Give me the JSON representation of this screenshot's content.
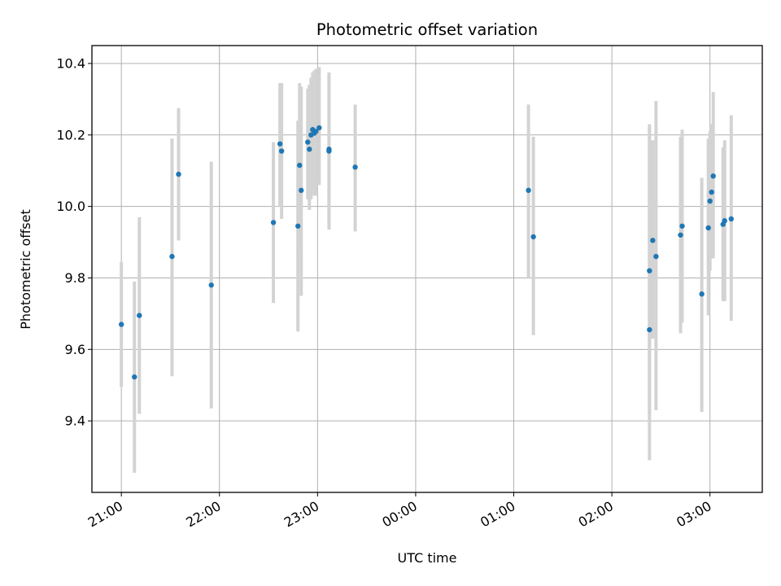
{
  "chart_data": {
    "type": "scatter",
    "title": "Photometric offset variation",
    "xlabel": "UTC time",
    "ylabel": "Photometric offset",
    "x_is_time": true,
    "xlim": [
      "20:42",
      "03:32"
    ],
    "ylim": [
      9.2,
      10.45
    ],
    "grid": true,
    "x_ticks": [
      "21:00",
      "22:00",
      "23:00",
      "00:00",
      "01:00",
      "02:00",
      "03:00"
    ],
    "y_ticks": [
      9.4,
      9.6,
      9.8,
      10.0,
      10.2,
      10.4
    ],
    "y_tick_labels": [
      "9.4",
      "9.6",
      "9.8",
      "10.0",
      "10.2",
      "10.4"
    ],
    "colors": {
      "point": "#1f77b4",
      "errorbar": "#d3d3d3",
      "grid": "#b0b0b0"
    },
    "points": [
      {
        "t": "21:00",
        "y": 9.67,
        "lo": 9.495,
        "hi": 9.845
      },
      {
        "t": "21:08",
        "y": 9.523,
        "lo": 9.255,
        "hi": 9.79
      },
      {
        "t": "21:11",
        "y": 9.695,
        "lo": 9.42,
        "hi": 9.97
      },
      {
        "t": "21:31",
        "y": 9.86,
        "lo": 9.525,
        "hi": 10.19
      },
      {
        "t": "21:35",
        "y": 10.09,
        "lo": 9.905,
        "hi": 10.275
      },
      {
        "t": "21:55",
        "y": 9.78,
        "lo": 9.435,
        "hi": 10.125
      },
      {
        "t": "22:33",
        "y": 9.955,
        "lo": 9.73,
        "hi": 10.18
      },
      {
        "t": "22:37",
        "y": 10.175,
        "lo": 10.0,
        "hi": 10.345
      },
      {
        "t": "22:38",
        "y": 10.155,
        "lo": 9.965,
        "hi": 10.345
      },
      {
        "t": "22:48",
        "y": 9.945,
        "lo": 9.65,
        "hi": 10.24
      },
      {
        "t": "22:49",
        "y": 10.115,
        "lo": 9.88,
        "hi": 10.345
      },
      {
        "t": "22:50",
        "y": 10.045,
        "lo": 9.75,
        "hi": 10.335
      },
      {
        "t": "22:54",
        "y": 10.18,
        "lo": 10.02,
        "hi": 10.33
      },
      {
        "t": "22:55",
        "y": 10.16,
        "lo": 9.99,
        "hi": 10.34
      },
      {
        "t": "22:56",
        "y": 10.2,
        "lo": 10.02,
        "hi": 10.36
      },
      {
        "t": "22:57",
        "y": 10.215,
        "lo": 10.05,
        "hi": 10.375
      },
      {
        "t": "22:58",
        "y": 10.205,
        "lo": 10.03,
        "hi": 10.38
      },
      {
        "t": "22:59",
        "y": 10.21,
        "lo": 10.03,
        "hi": 10.385
      },
      {
        "t": "23:01",
        "y": 10.22,
        "lo": 10.06,
        "hi": 10.39
      },
      {
        "t": "23:07",
        "y": 10.155,
        "lo": 9.935,
        "hi": 10.37
      },
      {
        "t": "23:07",
        "y": 10.16,
        "lo": 9.95,
        "hi": 10.375
      },
      {
        "t": "23:23",
        "y": 10.11,
        "lo": 9.93,
        "hi": 10.285
      },
      {
        "t": "01:09",
        "y": 10.045,
        "lo": 9.8,
        "hi": 10.285
      },
      {
        "t": "01:12",
        "y": 9.915,
        "lo": 9.64,
        "hi": 10.195
      },
      {
        "t": "02:23",
        "y": 9.655,
        "lo": 9.29,
        "hi": 10.23
      },
      {
        "t": "02:23",
        "y": 9.82,
        "lo": 9.42,
        "hi": 10.22
      },
      {
        "t": "02:25",
        "y": 9.905,
        "lo": 9.63,
        "hi": 10.185
      },
      {
        "t": "02:27",
        "y": 9.86,
        "lo": 9.43,
        "hi": 10.295
      },
      {
        "t": "02:42",
        "y": 9.92,
        "lo": 9.645,
        "hi": 10.195
      },
      {
        "t": "02:43",
        "y": 9.945,
        "lo": 9.675,
        "hi": 10.215
      },
      {
        "t": "02:55",
        "y": 9.755,
        "lo": 9.425,
        "hi": 10.08
      },
      {
        "t": "02:59",
        "y": 9.94,
        "lo": 9.695,
        "hi": 10.19
      },
      {
        "t": "03:00",
        "y": 10.015,
        "lo": 9.82,
        "hi": 10.21
      },
      {
        "t": "03:01",
        "y": 10.04,
        "lo": 9.855,
        "hi": 10.23
      },
      {
        "t": "03:02",
        "y": 10.085,
        "lo": 9.855,
        "hi": 10.32
      },
      {
        "t": "03:08",
        "y": 9.95,
        "lo": 9.735,
        "hi": 10.165
      },
      {
        "t": "03:09",
        "y": 9.96,
        "lo": 9.735,
        "hi": 10.185
      },
      {
        "t": "03:13",
        "y": 9.965,
        "lo": 9.68,
        "hi": 10.255
      }
    ]
  }
}
